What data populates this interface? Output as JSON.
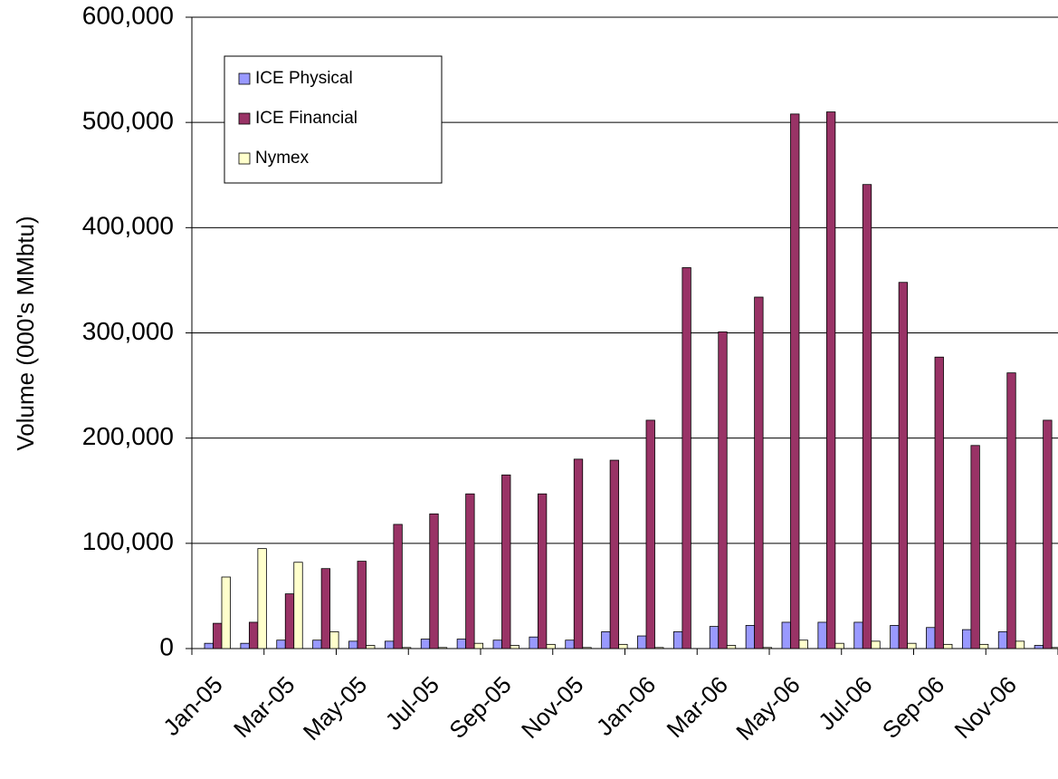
{
  "chart_data": {
    "type": "bar",
    "y_label": "Volume (000's MMbtu)",
    "categories": [
      "Jan-05",
      null,
      "Mar-05",
      null,
      "May-05",
      null,
      "Jul-05",
      null,
      "Sep-05",
      null,
      "Nov-05",
      null,
      "Jan-06",
      null,
      "Mar-06",
      null,
      "May-06",
      null,
      "Jul-06",
      null,
      "Sep-06",
      null,
      "Nov-06",
      null
    ],
    "series": [
      {
        "name": "ICE Physical",
        "color": "#9999ff",
        "values": [
          5000,
          5000,
          8000,
          8000,
          7000,
          7000,
          9000,
          9000,
          8000,
          11000,
          8000,
          16000,
          12000,
          16000,
          21000,
          22000,
          25000,
          25000,
          25000,
          22000,
          20000,
          18000,
          16000,
          3000
        ]
      },
      {
        "name": "ICE Financial",
        "color": "#993366",
        "values": [
          24000,
          25000,
          52000,
          76000,
          83000,
          118000,
          128000,
          147000,
          165000,
          147000,
          180000,
          179000,
          217000,
          362000,
          301000,
          334000,
          508000,
          510000,
          441000,
          348000,
          277000,
          193000,
          262000,
          217000
        ]
      },
      {
        "name": "Nymex",
        "color": "#ffffcc",
        "values": [
          68000,
          95000,
          82000,
          16000,
          3000,
          1000,
          1000,
          5000,
          3000,
          4000,
          1000,
          4000,
          1000,
          0,
          3000,
          1000,
          8000,
          5000,
          7000,
          5000,
          4000,
          4000,
          7000,
          1000
        ]
      }
    ],
    "ylim": [
      0,
      600000
    ],
    "yticks": [
      0,
      {
        "value": 100000,
        "label": "100,000"
      },
      {
        "value": 200000,
        "label": "200,000"
      },
      {
        "value": 300000,
        "label": "300,000"
      },
      {
        "value": 400000,
        "label": "400,000"
      },
      {
        "value": 500000,
        "label": "500,000"
      },
      {
        "value": 600000,
        "label": "600,000"
      }
    ],
    "grid": true
  }
}
